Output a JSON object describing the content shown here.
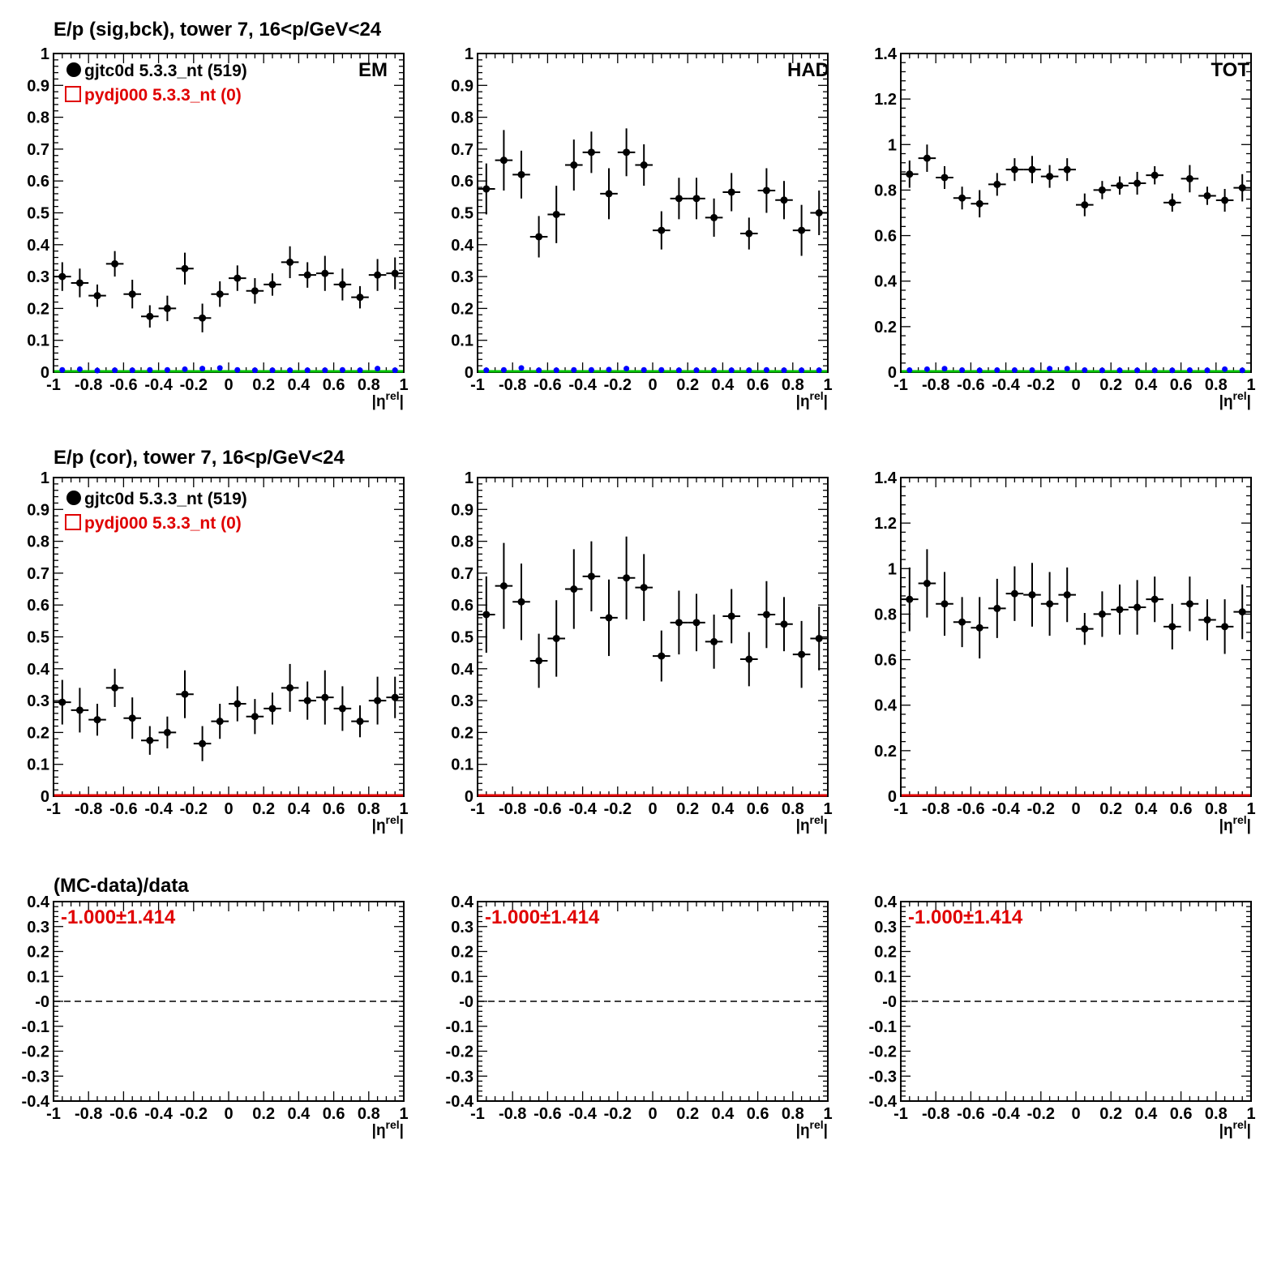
{
  "figure": {
    "row_titles": [
      "E/p (sig,bck), tower 7, 16<p/GeV<24",
      "E/p (cor), tower 7, 16<p/GeV<24",
      "(MC-data)/data"
    ],
    "column_labels": [
      "EM",
      "HAD",
      "TOT"
    ],
    "legend": {
      "data_label": "gjtc0d 5.3.3_nt (519)",
      "mc_label": "pydj000 5.3.3_nt (0)"
    },
    "x_axis_label": "|η^rel|",
    "ratio_text": "-1.000±1.414",
    "colors": {
      "data": "#000000",
      "mc": "#e00000",
      "background": "#0000ff",
      "fit_line_top": "#00c000",
      "fit_line_middle": "#e00000"
    }
  },
  "chart_data": [
    {
      "id": "sig-em",
      "type": "scatter",
      "row": 0,
      "col": 0,
      "xlim": [
        -1,
        1
      ],
      "ylim": [
        0,
        1
      ],
      "xticks": [
        "-1",
        "-0.8",
        "-0.6",
        "-0.4",
        "-0.2",
        "0",
        "0.2",
        "0.4",
        "0.6",
        "0.8",
        "1"
      ],
      "yticks": [
        "0",
        "0.1",
        "0.2",
        "0.3",
        "0.4",
        "0.5",
        "0.6",
        "0.7",
        "0.8",
        "0.9",
        "1"
      ],
      "yvalues": [
        0,
        0.1,
        0.2,
        0.3,
        0.4,
        0.5,
        0.6,
        0.7,
        0.8,
        0.9,
        1
      ],
      "series": [
        {
          "name": "gjtc0d 5.3.3_nt (519)",
          "x": [
            -0.95,
            -0.85,
            -0.75,
            -0.65,
            -0.55,
            -0.45,
            -0.35,
            -0.25,
            -0.15,
            -0.05,
            0.05,
            0.15,
            0.25,
            0.35,
            0.45,
            0.55,
            0.65,
            0.75,
            0.85,
            0.95
          ],
          "y": [
            0.3,
            0.28,
            0.24,
            0.34,
            0.245,
            0.175,
            0.2,
            0.325,
            0.17,
            0.245,
            0.295,
            0.255,
            0.275,
            0.345,
            0.305,
            0.31,
            0.275,
            0.235,
            0.305,
            0.31
          ],
          "yerr": [
            0.045,
            0.045,
            0.035,
            0.04,
            0.045,
            0.035,
            0.04,
            0.05,
            0.045,
            0.04,
            0.04,
            0.04,
            0.035,
            0.05,
            0.04,
            0.055,
            0.05,
            0.035,
            0.05,
            0.05
          ]
        },
        {
          "x": [
            -0.95,
            -0.85,
            -0.75,
            -0.65,
            -0.55,
            -0.45,
            -0.35,
            -0.25,
            -0.15,
            -0.05,
            0.05,
            0.15,
            0.25,
            0.35,
            0.45,
            0.55,
            0.65,
            0.75,
            0.85,
            0.95
          ],
          "y": [
            0.002,
            0.004,
            0.0,
            0.001,
            0.001,
            0.002,
            0.002,
            0.004,
            0.006,
            0.008,
            0.002,
            0.001,
            0.001,
            0.001,
            0.001,
            0.001,
            0.002,
            0.001,
            0.006,
            0.001
          ]
        }
      ]
    },
    {
      "id": "sig-had",
      "type": "scatter",
      "row": 0,
      "col": 1,
      "xlim": [
        -1,
        1
      ],
      "ylim": [
        0,
        1
      ],
      "xticks": [
        "-1",
        "-0.8",
        "-0.6",
        "-0.4",
        "-0.2",
        "0",
        "0.2",
        "0.4",
        "0.6",
        "0.8",
        "1"
      ],
      "yticks": [
        "0",
        "0.1",
        "0.2",
        "0.3",
        "0.4",
        "0.5",
        "0.6",
        "0.7",
        "0.8",
        "0.9",
        "1"
      ],
      "yvalues": [
        0,
        0.1,
        0.2,
        0.3,
        0.4,
        0.5,
        0.6,
        0.7,
        0.8,
        0.9,
        1
      ],
      "series": [
        {
          "name": "gjtc0d 5.3.3_nt (519)",
          "x": [
            -0.95,
            -0.85,
            -0.75,
            -0.65,
            -0.55,
            -0.45,
            -0.35,
            -0.25,
            -0.15,
            -0.05,
            0.05,
            0.15,
            0.25,
            0.35,
            0.45,
            0.55,
            0.65,
            0.75,
            0.85,
            0.95
          ],
          "y": [
            0.575,
            0.665,
            0.62,
            0.425,
            0.495,
            0.65,
            0.69,
            0.56,
            0.69,
            0.65,
            0.445,
            0.545,
            0.545,
            0.485,
            0.565,
            0.435,
            0.57,
            0.54,
            0.445,
            0.5
          ],
          "yerr": [
            0.08,
            0.095,
            0.075,
            0.065,
            0.09,
            0.08,
            0.065,
            0.08,
            0.075,
            0.065,
            0.06,
            0.065,
            0.065,
            0.06,
            0.06,
            0.05,
            0.07,
            0.06,
            0.08,
            0.07
          ]
        },
        {
          "x": [
            -0.95,
            -0.85,
            -0.75,
            -0.65,
            -0.55,
            -0.45,
            -0.35,
            -0.25,
            -0.15,
            -0.05,
            0.05,
            0.15,
            0.25,
            0.35,
            0.45,
            0.55,
            0.65,
            0.75,
            0.85,
            0.95
          ],
          "y": [
            0.001,
            0.002,
            0.008,
            0.001,
            0.001,
            0.002,
            0.002,
            0.003,
            0.006,
            0.002,
            0.002,
            0.001,
            0.001,
            0.001,
            0.001,
            0.001,
            0.002,
            0.001,
            0.001,
            0.001
          ]
        }
      ]
    },
    {
      "id": "sig-tot",
      "type": "scatter",
      "row": 0,
      "col": 2,
      "xlim": [
        -1,
        1
      ],
      "ylim": [
        0,
        1.4
      ],
      "xticks": [
        "-1",
        "-0.8",
        "-0.6",
        "-0.4",
        "-0.2",
        "0",
        "0.2",
        "0.4",
        "0.6",
        "0.8",
        "1"
      ],
      "yticks": [
        "0",
        "0.2",
        "0.4",
        "0.6",
        "0.8",
        "1",
        "1.2",
        "1.4"
      ],
      "yvalues": [
        0,
        0.2,
        0.4,
        0.6,
        0.8,
        1,
        1.2,
        1.4
      ],
      "series": [
        {
          "name": "gjtc0d 5.3.3_nt (519)",
          "x": [
            -0.95,
            -0.85,
            -0.75,
            -0.65,
            -0.55,
            -0.45,
            -0.35,
            -0.25,
            -0.15,
            -0.05,
            0.05,
            0.15,
            0.25,
            0.35,
            0.45,
            0.55,
            0.65,
            0.75,
            0.85,
            0.95
          ],
          "y": [
            0.87,
            0.94,
            0.855,
            0.765,
            0.74,
            0.825,
            0.89,
            0.89,
            0.86,
            0.89,
            0.735,
            0.8,
            0.82,
            0.83,
            0.865,
            0.745,
            0.85,
            0.775,
            0.755,
            0.81
          ],
          "yerr": [
            0.06,
            0.06,
            0.05,
            0.05,
            0.06,
            0.05,
            0.05,
            0.06,
            0.05,
            0.05,
            0.05,
            0.04,
            0.04,
            0.05,
            0.04,
            0.04,
            0.06,
            0.04,
            0.05,
            0.06
          ]
        },
        {
          "x": [
            -0.95,
            -0.85,
            -0.75,
            -0.65,
            -0.55,
            -0.45,
            -0.35,
            -0.25,
            -0.15,
            -0.05,
            0.05,
            0.15,
            0.25,
            0.35,
            0.45,
            0.55,
            0.65,
            0.75,
            0.85,
            0.95
          ],
          "y": [
            0.002,
            0.006,
            0.008,
            0.002,
            0.001,
            0.002,
            0.002,
            0.002,
            0.008,
            0.008,
            0.002,
            0.001,
            0.001,
            0.001,
            0.001,
            0.001,
            0.002,
            0.001,
            0.006,
            0.001
          ]
        }
      ]
    },
    {
      "id": "cor-em",
      "type": "scatter",
      "row": 1,
      "col": 0,
      "xlim": [
        -1,
        1
      ],
      "ylim": [
        0,
        1
      ],
      "xticks": [
        "-1",
        "-0.8",
        "-0.6",
        "-0.4",
        "-0.2",
        "0",
        "0.2",
        "0.4",
        "0.6",
        "0.8",
        "1"
      ],
      "yticks": [
        "0",
        "0.1",
        "0.2",
        "0.3",
        "0.4",
        "0.5",
        "0.6",
        "0.7",
        "0.8",
        "0.9",
        "1"
      ],
      "yvalues": [
        0,
        0.1,
        0.2,
        0.3,
        0.4,
        0.5,
        0.6,
        0.7,
        0.8,
        0.9,
        1
      ],
      "series": [
        {
          "name": "gjtc0d 5.3.3_nt (519)",
          "x": [
            -0.95,
            -0.85,
            -0.75,
            -0.65,
            -0.55,
            -0.45,
            -0.35,
            -0.25,
            -0.15,
            -0.05,
            0.05,
            0.15,
            0.25,
            0.35,
            0.45,
            0.55,
            0.65,
            0.75,
            0.85,
            0.95
          ],
          "y": [
            0.295,
            0.27,
            0.24,
            0.34,
            0.245,
            0.175,
            0.2,
            0.32,
            0.165,
            0.235,
            0.29,
            0.25,
            0.275,
            0.34,
            0.3,
            0.31,
            0.275,
            0.235,
            0.3,
            0.31
          ],
          "yerr": [
            0.07,
            0.07,
            0.05,
            0.06,
            0.065,
            0.045,
            0.05,
            0.075,
            0.055,
            0.055,
            0.055,
            0.055,
            0.05,
            0.075,
            0.06,
            0.085,
            0.07,
            0.05,
            0.075,
            0.065
          ]
        },
        {
          "x": [
            -0.95,
            0.95
          ],
          "y": [
            0.0,
            0.0
          ]
        }
      ]
    },
    {
      "id": "cor-had",
      "type": "scatter",
      "row": 1,
      "col": 1,
      "xlim": [
        -1,
        1
      ],
      "ylim": [
        0,
        1
      ],
      "xticks": [
        "-1",
        "-0.8",
        "-0.6",
        "-0.4",
        "-0.2",
        "0",
        "0.2",
        "0.4",
        "0.6",
        "0.8",
        "1"
      ],
      "yticks": [
        "0",
        "0.1",
        "0.2",
        "0.3",
        "0.4",
        "0.5",
        "0.6",
        "0.7",
        "0.8",
        "0.9",
        "1"
      ],
      "yvalues": [
        0,
        0.1,
        0.2,
        0.3,
        0.4,
        0.5,
        0.6,
        0.7,
        0.8,
        0.9,
        1
      ],
      "series": [
        {
          "name": "gjtc0d 5.3.3_nt (519)",
          "x": [
            -0.95,
            -0.85,
            -0.75,
            -0.65,
            -0.55,
            -0.45,
            -0.35,
            -0.25,
            -0.15,
            -0.05,
            0.05,
            0.15,
            0.25,
            0.35,
            0.45,
            0.55,
            0.65,
            0.75,
            0.85,
            0.95
          ],
          "y": [
            0.57,
            0.66,
            0.61,
            0.425,
            0.495,
            0.65,
            0.69,
            0.56,
            0.685,
            0.655,
            0.44,
            0.545,
            0.545,
            0.485,
            0.565,
            0.43,
            0.57,
            0.54,
            0.445,
            0.495
          ],
          "yerr": [
            0.12,
            0.135,
            0.12,
            0.085,
            0.12,
            0.125,
            0.11,
            0.12,
            0.13,
            0.105,
            0.08,
            0.1,
            0.09,
            0.085,
            0.085,
            0.085,
            0.105,
            0.085,
            0.105,
            0.1
          ]
        },
        {
          "x": [
            -0.95,
            0.95
          ],
          "y": [
            0.0,
            0.0
          ]
        }
      ]
    },
    {
      "id": "cor-tot",
      "type": "scatter",
      "row": 1,
      "col": 2,
      "xlim": [
        -1,
        1
      ],
      "ylim": [
        0,
        1.4
      ],
      "xticks": [
        "-1",
        "-0.8",
        "-0.6",
        "-0.4",
        "-0.2",
        "0",
        "0.2",
        "0.4",
        "0.6",
        "0.8",
        "1"
      ],
      "yticks": [
        "0",
        "0.2",
        "0.4",
        "0.6",
        "0.8",
        "1",
        "1.2",
        "1.4"
      ],
      "yvalues": [
        0,
        0.2,
        0.4,
        0.6,
        0.8,
        1,
        1.2,
        1.4
      ],
      "series": [
        {
          "name": "gjtc0d 5.3.3_nt (519)",
          "x": [
            -0.95,
            -0.85,
            -0.75,
            -0.65,
            -0.55,
            -0.45,
            -0.35,
            -0.25,
            -0.15,
            -0.05,
            0.05,
            0.15,
            0.25,
            0.35,
            0.45,
            0.55,
            0.65,
            0.75,
            0.85,
            0.95
          ],
          "y": [
            0.865,
            0.935,
            0.845,
            0.765,
            0.74,
            0.825,
            0.89,
            0.885,
            0.845,
            0.885,
            0.735,
            0.8,
            0.82,
            0.83,
            0.865,
            0.745,
            0.845,
            0.775,
            0.745,
            0.81
          ],
          "yerr": [
            0.14,
            0.15,
            0.14,
            0.11,
            0.135,
            0.13,
            0.12,
            0.14,
            0.14,
            0.12,
            0.07,
            0.1,
            0.11,
            0.12,
            0.1,
            0.1,
            0.12,
            0.09,
            0.12,
            0.12
          ]
        },
        {
          "x": [
            -0.95,
            0.95
          ],
          "y": [
            0.0,
            0.0
          ]
        }
      ]
    },
    {
      "id": "ratio-em",
      "type": "line",
      "row": 2,
      "col": 0,
      "xlim": [
        -1,
        1
      ],
      "ylim": [
        -0.4,
        0.4
      ],
      "xticks": [
        "-1",
        "-0.8",
        "-0.6",
        "-0.4",
        "-0.2",
        "0",
        "0.2",
        "0.4",
        "0.6",
        "0.8",
        "1"
      ],
      "yticks": [
        "-0.4",
        "-0.3",
        "-0.2",
        "-0.1",
        "-0",
        "0.1",
        "0.2",
        "0.3",
        "0.4"
      ],
      "yvalues": [
        -0.4,
        -0.3,
        -0.2,
        -0.1,
        0,
        0.1,
        0.2,
        0.3,
        0.4
      ],
      "reference_line": 0,
      "annotation": "-1.000±1.414"
    },
    {
      "id": "ratio-had",
      "type": "line",
      "row": 2,
      "col": 1,
      "xlim": [
        -1,
        1
      ],
      "ylim": [
        -0.4,
        0.4
      ],
      "xticks": [
        "-1",
        "-0.8",
        "-0.6",
        "-0.4",
        "-0.2",
        "0",
        "0.2",
        "0.4",
        "0.6",
        "0.8",
        "1"
      ],
      "yticks": [
        "-0.4",
        "-0.3",
        "-0.2",
        "-0.1",
        "-0",
        "0.1",
        "0.2",
        "0.3",
        "0.4"
      ],
      "yvalues": [
        -0.4,
        -0.3,
        -0.2,
        -0.1,
        0,
        0.1,
        0.2,
        0.3,
        0.4
      ],
      "reference_line": 0,
      "annotation": "-1.000±1.414"
    },
    {
      "id": "ratio-tot",
      "type": "line",
      "row": 2,
      "col": 2,
      "xlim": [
        -1,
        1
      ],
      "ylim": [
        -0.4,
        0.4
      ],
      "xticks": [
        "-1",
        "-0.8",
        "-0.6",
        "-0.4",
        "-0.2",
        "0",
        "0.2",
        "0.4",
        "0.6",
        "0.8",
        "1"
      ],
      "yticks": [
        "-0.4",
        "-0.3",
        "-0.2",
        "-0.1",
        "-0",
        "0.1",
        "0.2",
        "0.3",
        "0.4"
      ],
      "yvalues": [
        -0.4,
        -0.3,
        -0.2,
        -0.1,
        0,
        0.1,
        0.2,
        0.3,
        0.4
      ],
      "reference_line": 0,
      "annotation": "-1.000±1.414"
    }
  ]
}
